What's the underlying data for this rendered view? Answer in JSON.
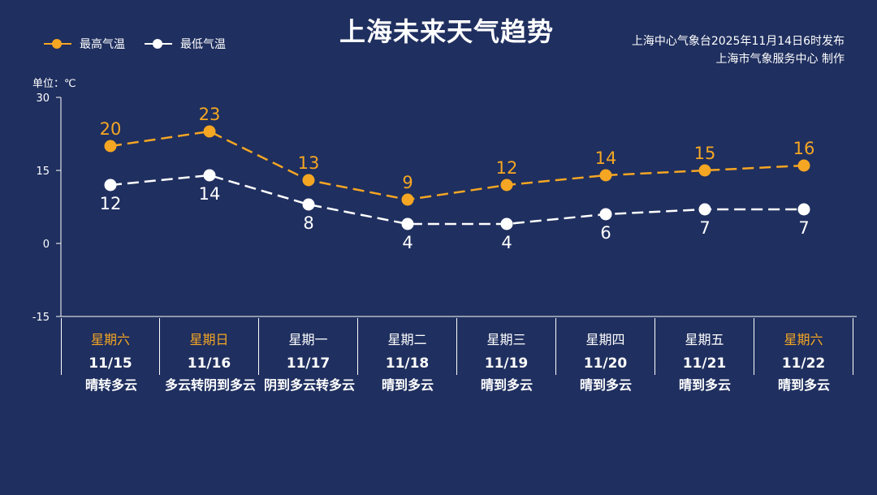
{
  "title": "上海未来天气趋势",
  "legend": {
    "high_label": "最高气温",
    "low_label": "最低气温"
  },
  "credit": {
    "line1": "上海中心气象台2025年11月14日6时发布",
    "line2": "上海市气象服务中心  制作"
  },
  "unit_label": "单位：℃",
  "colors": {
    "background": "#1f2f5f",
    "high": "#f5a623",
    "low": "#ffffff",
    "weekend": "#f5a623"
  },
  "days": [
    {
      "weekday": "星期六",
      "date": "11/15",
      "weather": "晴转多云",
      "weekend": true
    },
    {
      "weekday": "星期日",
      "date": "11/16",
      "weather": "多云转阴到多云",
      "weekend": true
    },
    {
      "weekday": "星期一",
      "date": "11/17",
      "weather": "阴到多云转多云",
      "weekend": false
    },
    {
      "weekday": "星期二",
      "date": "11/18",
      "weather": "晴到多云",
      "weekend": false
    },
    {
      "weekday": "星期三",
      "date": "11/19",
      "weather": "晴到多云",
      "weekend": false
    },
    {
      "weekday": "星期四",
      "date": "11/20",
      "weather": "晴到多云",
      "weekend": false
    },
    {
      "weekday": "星期五",
      "date": "11/21",
      "weather": "晴到多云",
      "weekend": false
    },
    {
      "weekday": "星期六",
      "date": "11/22",
      "weather": "晴到多云",
      "weekend": true
    }
  ],
  "chart_data": {
    "type": "line",
    "title": "上海未来天气趋势",
    "categories": [
      "11/15",
      "11/16",
      "11/17",
      "11/18",
      "11/19",
      "11/20",
      "11/21",
      "11/22"
    ],
    "series": [
      {
        "name": "最高气温",
        "values": [
          20,
          23,
          13,
          9,
          12,
          14,
          15,
          16
        ],
        "color": "#f5a623",
        "line_style": "dashed"
      },
      {
        "name": "最低气温",
        "values": [
          12,
          14,
          8,
          4,
          4,
          6,
          7,
          7
        ],
        "color": "#ffffff",
        "line_style": "dashed"
      }
    ],
    "ylabel": "单位：℃",
    "ylim": [
      -15,
      30
    ],
    "yticks": [
      30,
      15,
      0,
      -15
    ],
    "grid": false,
    "legend_position": "top-left"
  }
}
